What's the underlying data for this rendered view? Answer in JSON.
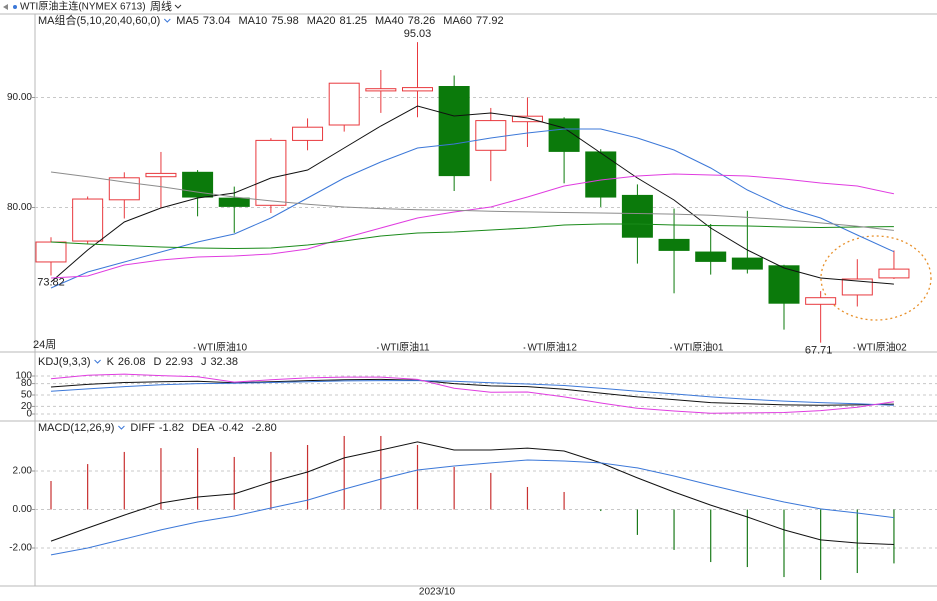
{
  "header": {
    "title": "WTI原油主连(NYMEX 6713)",
    "period": "周线"
  },
  "chart_data": [
    {
      "type": "candlestick",
      "title": "MA组合(5,10,20,40,60,0)",
      "period_label": "24周",
      "categories": [
        null,
        null,
        null,
        null,
        "WTI原油10",
        null,
        null,
        null,
        null,
        "WTI原油11",
        null,
        null,
        null,
        "WTI原油12",
        null,
        null,
        null,
        "WTI原油01",
        null,
        null,
        null,
        null,
        "WTI原油02",
        null
      ],
      "open": [
        75.05,
        76.95,
        80.7,
        82.8,
        83.2,
        80.85,
        80.2,
        86.1,
        87.5,
        90.6,
        90.6,
        91.0,
        85.2,
        87.8,
        88.05,
        85.05,
        81.1,
        77.1,
        75.95,
        75.4,
        74.7,
        71.2,
        72.05,
        73.6
      ],
      "high": [
        77.3,
        81.0,
        83.2,
        85.05,
        83.4,
        81.9,
        86.3,
        88.1,
        91.3,
        92.5,
        95.03,
        92.0,
        89.05,
        90.0,
        88.2,
        85.3,
        82.1,
        79.9,
        78.5,
        79.7,
        74.8,
        72.4,
        75.3,
        76.1
      ],
      "low": [
        73.82,
        76.7,
        79.0,
        79.95,
        79.2,
        77.7,
        79.5,
        85.2,
        86.9,
        88.6,
        88.2,
        81.5,
        82.4,
        85.5,
        82.2,
        80.05,
        74.9,
        72.2,
        73.9,
        74.0,
        68.9,
        67.71,
        71.0,
        73.5
      ],
      "close": [
        76.86,
        80.77,
        82.7,
        83.1,
        80.95,
        80.1,
        86.1,
        87.3,
        91.3,
        90.8,
        90.9,
        82.9,
        87.9,
        88.3,
        85.1,
        80.95,
        77.3,
        76.1,
        75.1,
        74.4,
        71.3,
        71.8,
        73.5,
        74.4
      ],
      "up_color": "#e8383d",
      "down_color": "#0b7a0b",
      "series": [
        {
          "name": "MA5",
          "color": "#111111",
          "values": [
            73.23,
            76.14,
            78.68,
            79.95,
            80.86,
            81.32,
            82.68,
            83.41,
            85.41,
            87.41,
            89.23,
            88.32,
            88.59,
            88.14,
            87.23,
            84.95,
            82.68,
            80.68,
            78.14,
            76.14,
            74.5,
            73.59,
            73.32,
            73.04
          ]
        },
        {
          "name": "MA10",
          "color": "#3c78d8",
          "values": [
            72.68,
            74.14,
            75.05,
            75.95,
            76.86,
            77.59,
            79.05,
            80.86,
            82.68,
            84.14,
            85.41,
            85.77,
            86.32,
            86.77,
            87.14,
            87.14,
            86.32,
            85.23,
            83.59,
            81.59,
            80.05,
            79.05,
            77.5,
            75.98
          ]
        },
        {
          "name": "MA20",
          "color": "#e03ce0",
          "values": [
            73.59,
            73.77,
            74.77,
            75.23,
            75.5,
            75.59,
            75.77,
            76.23,
            77.23,
            78.14,
            79.05,
            79.59,
            80.05,
            80.95,
            81.95,
            82.5,
            82.86,
            83.05,
            82.95,
            82.86,
            82.59,
            82.23,
            81.95,
            81.25
          ]
        },
        {
          "name": "MA40",
          "color": "#1a8a1a",
          "values": [
            76.86,
            76.68,
            76.55,
            76.41,
            76.32,
            76.27,
            76.32,
            76.59,
            76.95,
            77.41,
            77.68,
            77.77,
            77.95,
            78.14,
            78.41,
            78.5,
            78.5,
            78.41,
            78.36,
            78.32,
            78.23,
            78.18,
            78.23,
            78.26
          ]
        },
        {
          "name": "MA60",
          "color": "#8c8c8c",
          "values": [
            83.23,
            82.8,
            82.32,
            81.9,
            81.4,
            80.95,
            80.6,
            80.3,
            80.05,
            79.9,
            79.8,
            79.75,
            79.65,
            79.6,
            79.55,
            79.5,
            79.45,
            79.4,
            79.3,
            79.1,
            78.9,
            78.6,
            78.3,
            77.92
          ]
        }
      ],
      "ylim": [
        67,
        97.5
      ],
      "yticks": [
        {
          "value": 80,
          "label": "80.00"
        },
        {
          "value": 90,
          "label": "90.00"
        }
      ],
      "grid": true
    },
    {
      "type": "line",
      "title": "KDJ(9,3,3)",
      "series": [
        {
          "name": "K",
          "color": "#111111",
          "values": [
            71,
            78,
            83,
            85,
            86,
            82,
            85,
            88,
            90,
            91,
            89,
            80,
            74,
            72,
            65,
            55,
            45,
            38,
            30,
            27,
            24,
            23,
            24,
            26.08
          ]
        },
        {
          "name": "D",
          "color": "#3c78d8",
          "values": [
            60,
            66,
            72,
            77,
            80,
            81,
            83,
            85,
            87,
            88,
            88,
            86,
            82,
            79,
            75,
            68,
            60,
            53,
            45,
            39,
            34,
            30,
            27,
            22.93
          ]
        },
        {
          "name": "J",
          "color": "#e03ce0",
          "values": [
            93,
            102,
            105,
            101,
            98,
            84,
            90,
            95,
            97,
            97,
            91,
            68,
            57,
            58,
            45,
            29,
            15,
            8,
            2,
            3,
            4,
            9,
            18,
            32.38
          ]
        }
      ],
      "ylim": [
        0,
        110
      ],
      "yticks": [
        0,
        20,
        50,
        80,
        100
      ],
      "grid": true
    },
    {
      "type": "macd",
      "title": "MACD(12,26,9)",
      "x_label": "2023/10",
      "values": [
        1.48,
        2.36,
        2.99,
        3.19,
        3.19,
        2.73,
        2.99,
        3.35,
        3.82,
        3.82,
        3.35,
        2.21,
        1.9,
        1.17,
        0.91,
        -0.08,
        -1.32,
        -2.1,
        -2.73,
        -2.99,
        -3.51,
        -3.66,
        -3.3,
        -2.8
      ],
      "readout": {
        "value": -2.8,
        "label": "-2.80"
      },
      "up_color": "#c83030",
      "down_color": "#1a7a1a",
      "series": [
        {
          "name": "DIFF",
          "color": "#111111",
          "values": [
            -1.64,
            -0.96,
            -0.29,
            0.34,
            0.65,
            0.81,
            1.43,
            1.95,
            2.68,
            3.09,
            3.51,
            3.09,
            3.09,
            3.19,
            3.04,
            2.42,
            1.64,
            0.91,
            0.23,
            -0.39,
            -1.06,
            -1.58,
            -1.74,
            -1.82
          ]
        },
        {
          "name": "DEA",
          "color": "#3c78d8",
          "values": [
            -2.36,
            -2.0,
            -1.53,
            -1.06,
            -0.65,
            -0.34,
            0.08,
            0.49,
            1.06,
            1.58,
            2.05,
            2.26,
            2.42,
            2.57,
            2.52,
            2.42,
            2.16,
            1.74,
            1.27,
            0.81,
            0.39,
            0.03,
            -0.18,
            -0.42
          ]
        }
      ],
      "ylim": [
        -4,
        4
      ],
      "yticks": [
        {
          "value": 2,
          "label": "2.00"
        },
        {
          "value": 0,
          "label": "0.00"
        },
        {
          "value": -2,
          "label": "-2.00"
        }
      ],
      "grid": true
    }
  ]
}
